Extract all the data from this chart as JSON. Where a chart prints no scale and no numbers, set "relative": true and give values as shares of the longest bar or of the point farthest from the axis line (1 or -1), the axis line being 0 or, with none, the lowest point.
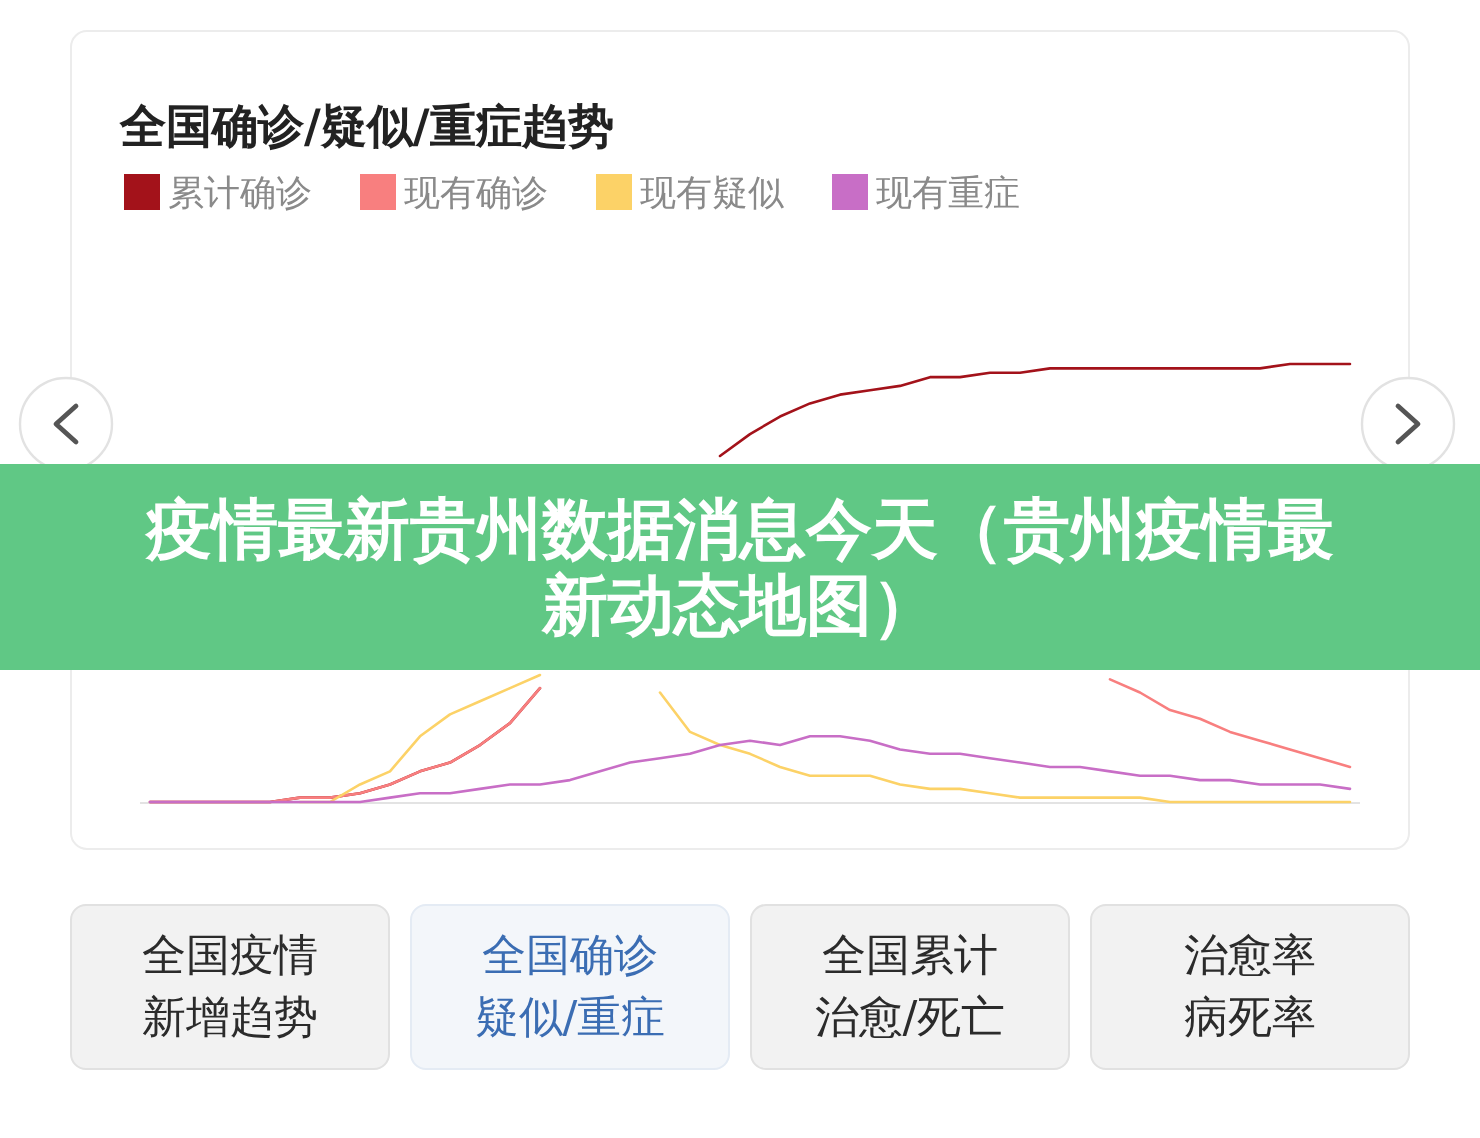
{
  "chart_data": [
    {
      "type": "line",
      "title": "全国确诊/疑似/重症趋势",
      "relative": true,
      "legend": "top left",
      "categories": [
        null,
        null,
        null,
        null,
        null,
        null,
        null,
        null,
        null,
        null,
        null,
        null,
        null,
        null,
        null,
        null,
        null,
        null,
        null,
        null,
        null,
        null,
        null,
        null,
        null,
        null,
        null,
        null,
        null,
        null,
        null,
        null,
        null,
        null,
        null,
        null,
        null,
        null,
        null,
        null,
        null
      ],
      "series": [
        {
          "name": "累计确诊",
          "color": "#a3121a",
          "values": [
            0,
            0,
            0,
            0,
            0,
            0.01,
            0.01,
            0.02,
            0.04,
            0.07,
            0.09,
            0.13,
            0.18,
            0.26,
            null,
            null,
            null,
            null,
            null,
            0.79,
            0.84,
            0.88,
            0.91,
            0.93,
            0.94,
            0.95,
            0.97,
            0.97,
            0.98,
            0.98,
            0.99,
            0.99,
            0.99,
            0.99,
            0.99,
            0.99,
            0.99,
            0.99,
            1,
            1,
            1
          ]
        },
        {
          "name": "现有确诊",
          "color": "#f87f7f",
          "values": [
            0,
            0,
            0,
            0,
            0,
            0.01,
            0.01,
            0.02,
            0.04,
            0.07,
            0.09,
            0.13,
            0.18,
            0.26,
            null,
            null,
            null,
            null,
            null,
            null,
            null,
            null,
            null,
            null,
            null,
            null,
            null,
            null,
            null,
            null,
            null,
            null,
            0.28,
            0.25,
            0.21,
            0.19,
            0.16,
            0.14,
            0.12,
            0.1,
            0.08
          ]
        },
        {
          "name": "现有疑似",
          "color": "#fcd267",
          "values": [
            null,
            null,
            null,
            null,
            null,
            0,
            0,
            0.04,
            0.07,
            0.15,
            0.2,
            0.23,
            0.26,
            0.29,
            null,
            null,
            null,
            0.25,
            0.16,
            0.13,
            0.11,
            0.08,
            0.06,
            0.06,
            0.06,
            0.04,
            0.03,
            0.03,
            0.02,
            0.01,
            0.01,
            0.01,
            0.01,
            0.01,
            0,
            0,
            0,
            0,
            0,
            0,
            0
          ]
        },
        {
          "name": "现有重症",
          "color": "#c86ec6",
          "values": [
            0,
            0,
            0,
            0,
            0,
            0,
            0,
            0,
            0.01,
            0.02,
            0.02,
            0.03,
            0.04,
            0.04,
            0.05,
            0.07,
            0.09,
            0.1,
            0.11,
            0.13,
            0.14,
            0.13,
            0.15,
            0.15,
            0.14,
            0.12,
            0.11,
            0.11,
            0.1,
            0.09,
            0.08,
            0.08,
            0.07,
            0.06,
            0.06,
            0.05,
            0.05,
            0.04,
            0.04,
            0.04,
            0.03
          ]
        }
      ],
      "annotations": [
        "疫情最新贵州数据消息今天（贵州疫情最新动态地图）"
      ]
    },
    {
      "type": "other",
      "annotations": [
        "全国疫情新增趋势",
        "全国确诊疑似/重症",
        "全国累计治愈/死亡",
        "治愈率病死率"
      ],
      "colors": [
        "#2b2b2b",
        "#3b6db3",
        "#2b2b2b",
        "#2b2b2b"
      ]
    }
  ]
}
